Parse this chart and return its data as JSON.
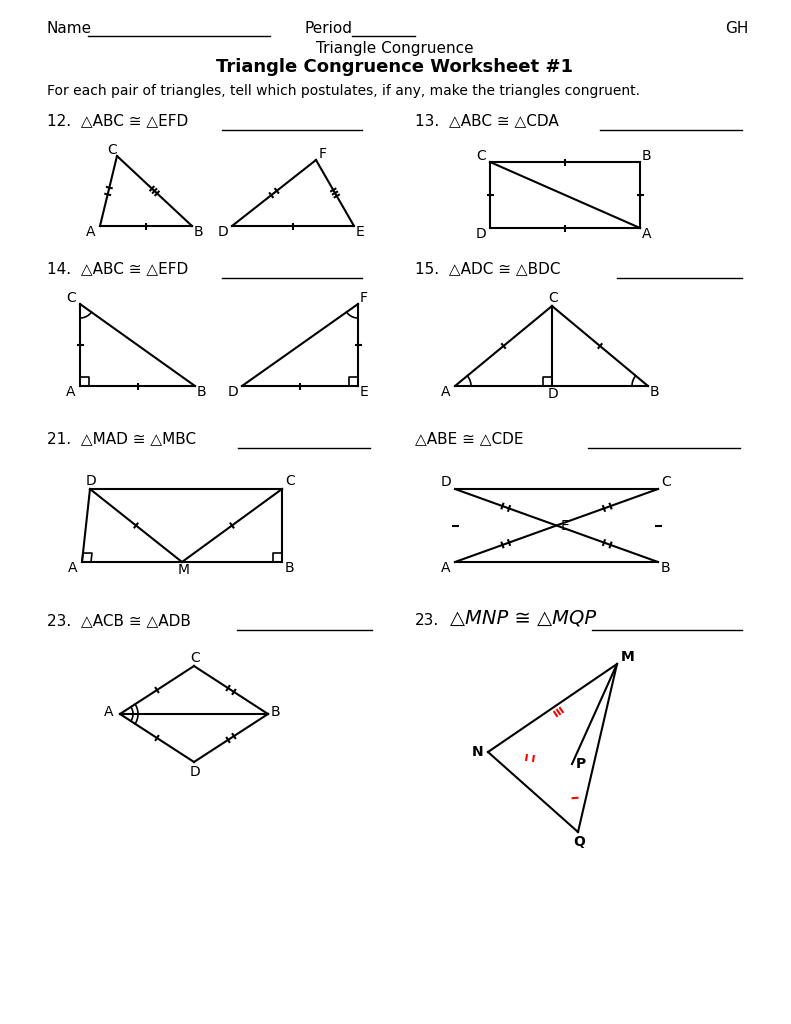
{
  "title1": "Triangle Congruence",
  "title2": "Triangle Congruence Worksheet #1",
  "subtitle": "For each pair of triangles, tell which postulates, if any, make the triangles congruent.",
  "name_text": "Name",
  "period_text": "Period",
  "gh_text": "GH"
}
